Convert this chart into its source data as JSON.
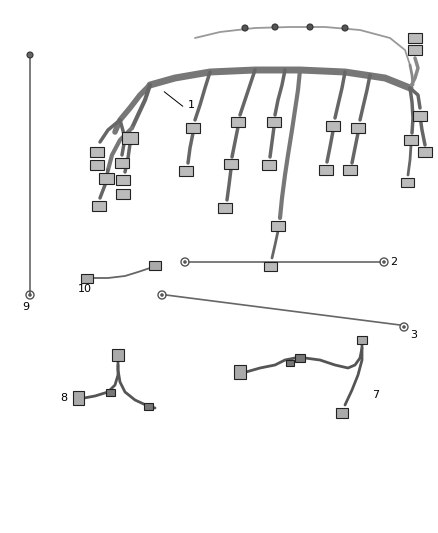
{
  "background_color": "#ffffff",
  "wire_color": "#555555",
  "label_color": "#000000",
  "figsize": [
    4.38,
    5.33
  ],
  "dpi": 100,
  "harness_color": "#888888",
  "connector_face": "#cccccc",
  "connector_edge": "#222222"
}
